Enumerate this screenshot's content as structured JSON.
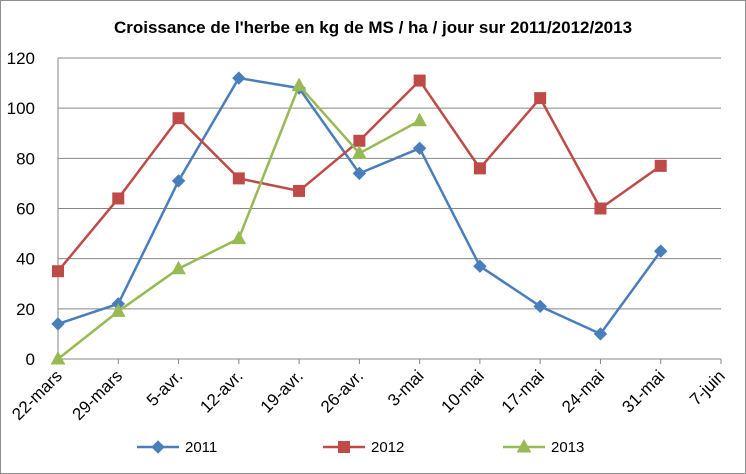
{
  "chart_data": {
    "type": "line",
    "title": "Croissance de l'herbe en kg de MS / ha / jour sur 2011/2012/2013",
    "xlabel": "",
    "ylabel": "",
    "categories": [
      "22-mars",
      "29-mars",
      "5-avr.",
      "12-avr.",
      "19-avr.",
      "26-avr.",
      "3-mai",
      "10-mai",
      "17-mai",
      "24-mai",
      "31-mai",
      "7-juin"
    ],
    "ylim": [
      0,
      120
    ],
    "yticks": [
      0,
      20,
      40,
      60,
      80,
      100,
      120
    ],
    "grid": true,
    "legend_position": "bottom",
    "series": [
      {
        "name": "2011",
        "color": "#4A7EBB",
        "marker": "diamond",
        "values": [
          14,
          22,
          71,
          112,
          108,
          74,
          84,
          37,
          21,
          10,
          43,
          null
        ]
      },
      {
        "name": "2012",
        "color": "#BE4B48",
        "marker": "square",
        "values": [
          35,
          64,
          96,
          72,
          67,
          87,
          111,
          76,
          104,
          60,
          77,
          null
        ]
      },
      {
        "name": "2013",
        "color": "#98B954",
        "marker": "triangle",
        "values": [
          0,
          19,
          36,
          48,
          109,
          82,
          95,
          null,
          null,
          null,
          null,
          null
        ]
      }
    ]
  }
}
